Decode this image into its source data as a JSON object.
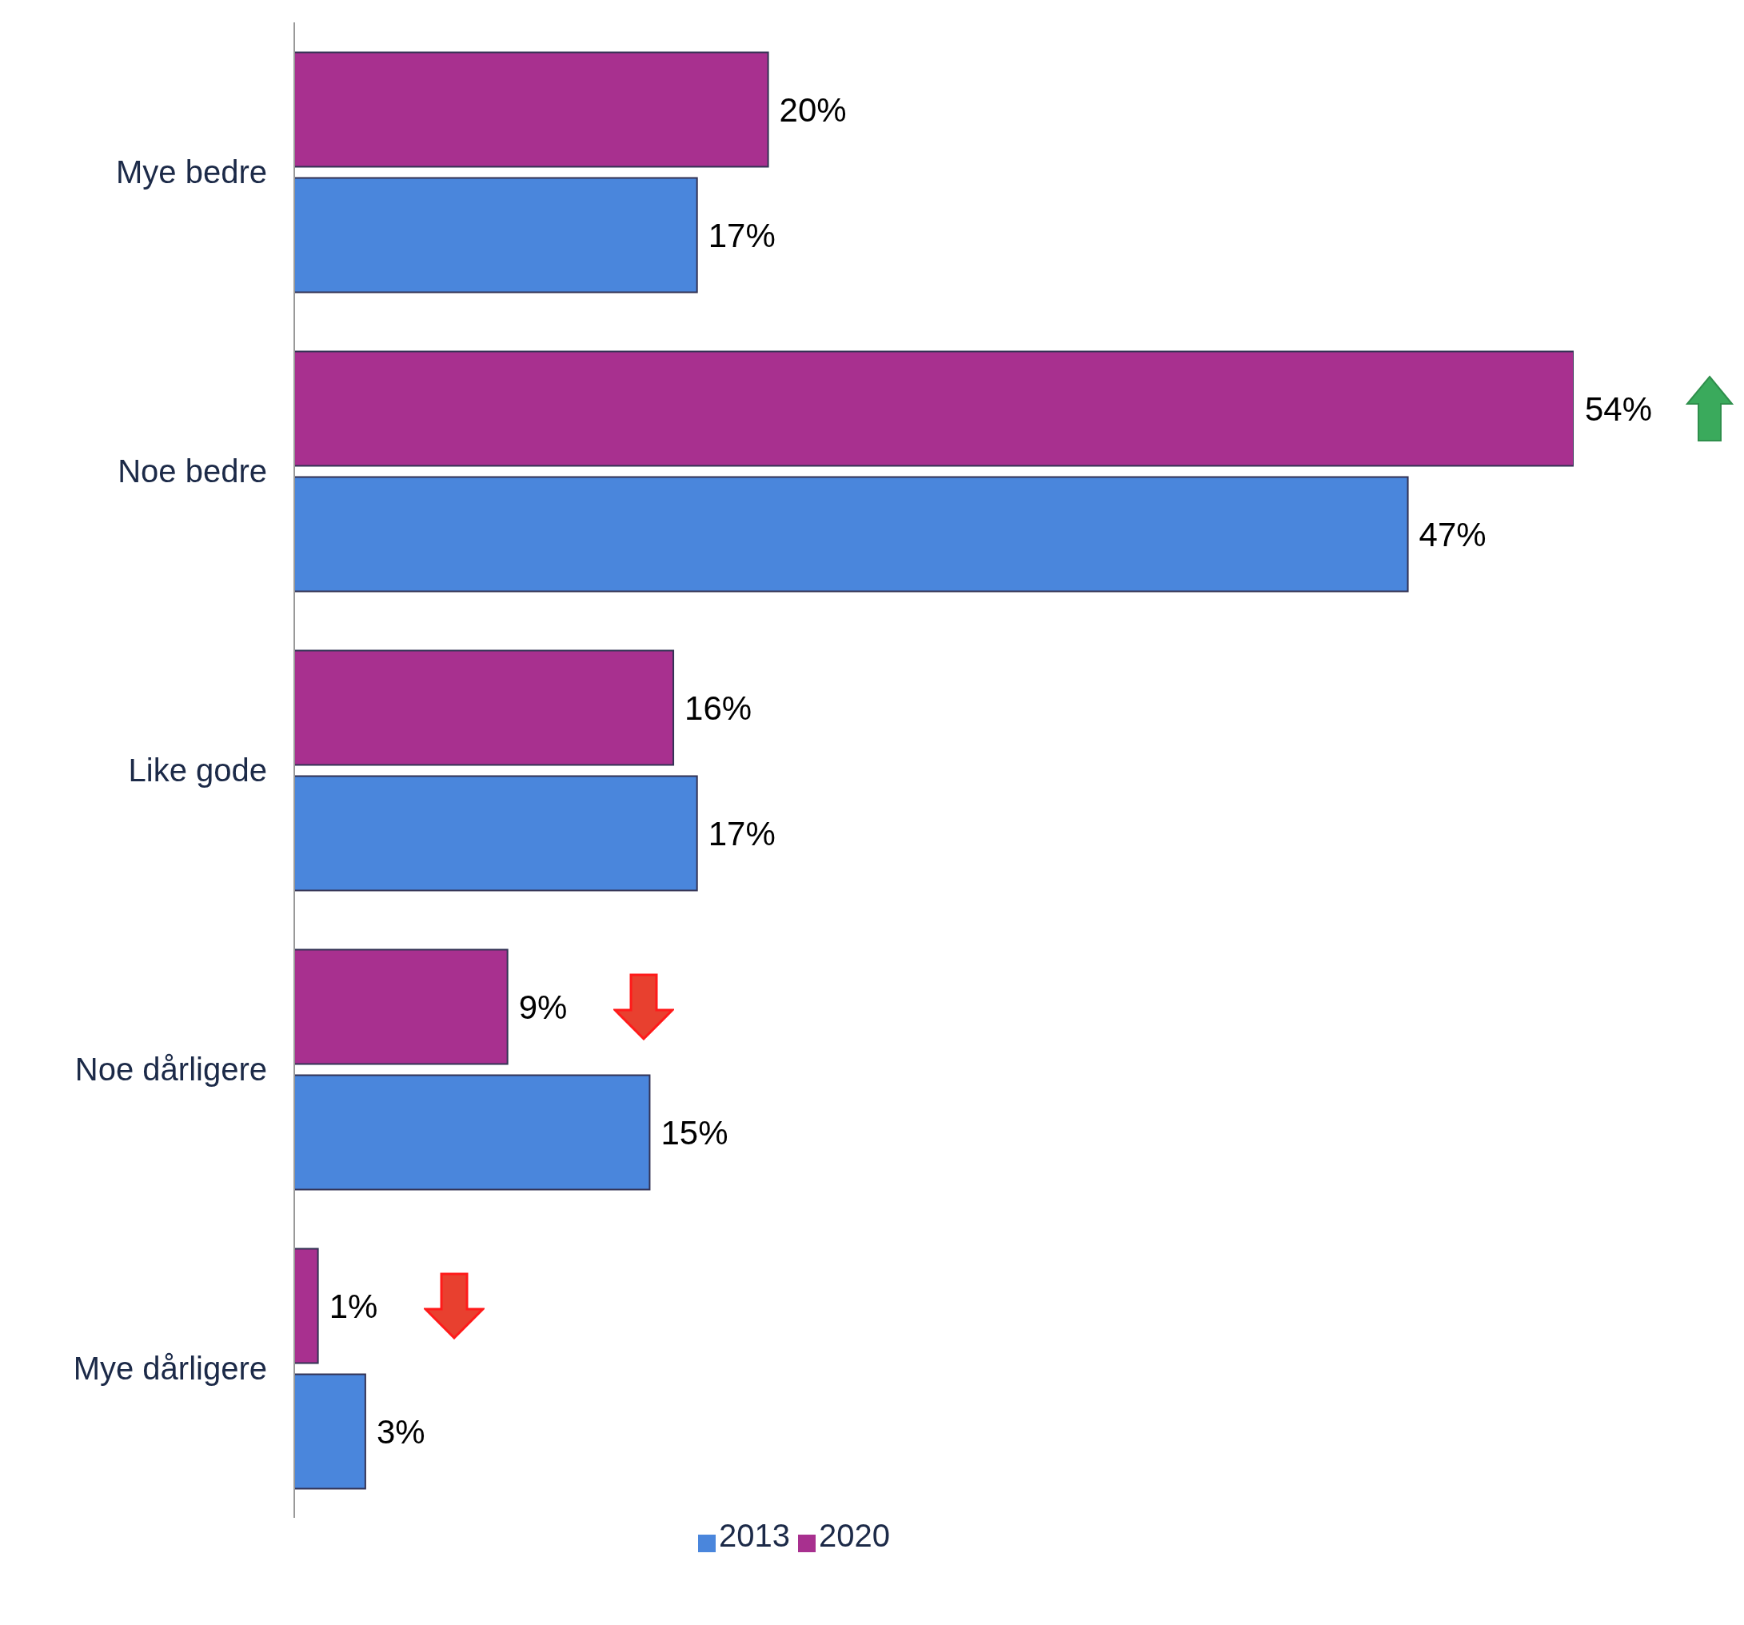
{
  "chart_data": {
    "type": "bar",
    "orientation": "horizontal",
    "categories": [
      "Mye bedre",
      "Noe bedre",
      "Like gode",
      "Noe dårligere",
      "Mye dårligere"
    ],
    "series": [
      {
        "name": "2020",
        "color": "#a8308f",
        "values": [
          20,
          54,
          16,
          9,
          1
        ],
        "value_labels": [
          "20%",
          "54%",
          "16%",
          "9%",
          "1%"
        ]
      },
      {
        "name": "2013",
        "color": "#4a86dc",
        "values": [
          17,
          47,
          17,
          15,
          3
        ],
        "value_labels": [
          "17%",
          "47%",
          "17%",
          "15%",
          "3%"
        ]
      }
    ],
    "legend": "bottom",
    "grid": false
  }
}
